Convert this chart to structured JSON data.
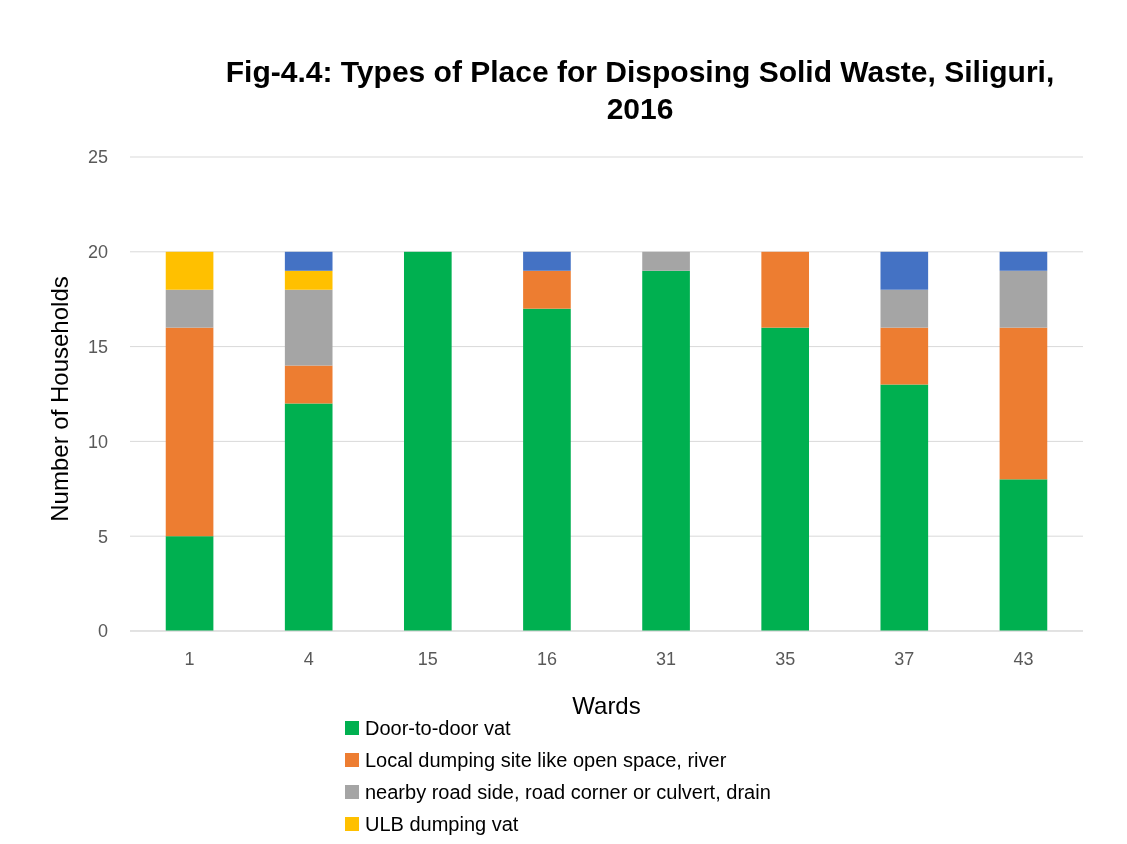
{
  "chart_data": {
    "type": "bar",
    "stacked": true,
    "title": "Fig-4.4: Types of Place for Disposing Solid Waste, Siliguri, 2016",
    "xlabel": "Wards",
    "ylabel": "Number of Households",
    "categories": [
      "1",
      "4",
      "15",
      "16",
      "31",
      "35",
      "37",
      "43"
    ],
    "series": [
      {
        "name": "Door-to-door vat",
        "color": "#00b050",
        "values": [
          5,
          12,
          20,
          17,
          19,
          16,
          13,
          8
        ]
      },
      {
        "name": "Local dumping site like open space, river",
        "color": "#ed7d31",
        "values": [
          11,
          2,
          0,
          2,
          0,
          4,
          3,
          8
        ]
      },
      {
        "name": "nearby road side, road corner or culvert, drain",
        "color": "#a5a5a5",
        "values": [
          2,
          4,
          0,
          0,
          1,
          0,
          2,
          3
        ]
      },
      {
        "name": "ULB dumping vat",
        "color": "#ffc000",
        "values": [
          2,
          1,
          0,
          0,
          0,
          0,
          0,
          0
        ]
      },
      {
        "color": "#4472c4",
        "values": [
          0,
          1,
          0,
          1,
          0,
          0,
          2,
          1
        ]
      }
    ],
    "ylim": [
      0,
      25
    ],
    "yticks": [
      0,
      5,
      10,
      15,
      20,
      25
    ],
    "grid": "y",
    "legend": "bottom"
  }
}
